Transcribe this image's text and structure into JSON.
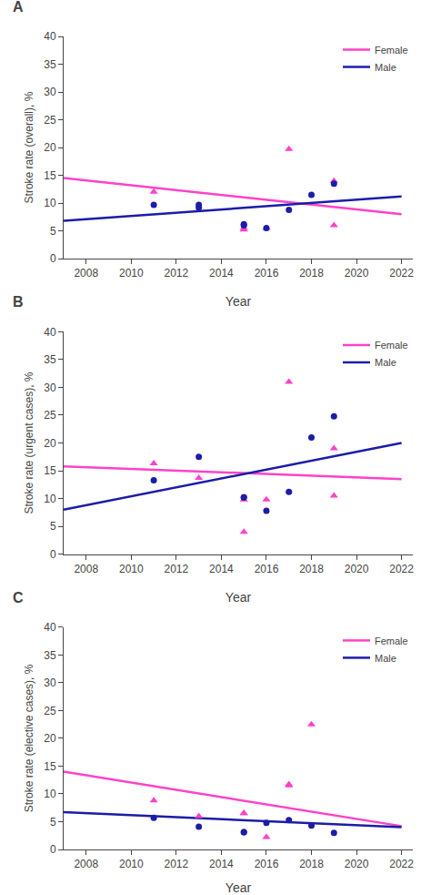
{
  "chart_data": [
    {
      "type": "scatter",
      "title": "A",
      "xlabel": "Year",
      "ylabel": "Stroke rate (overall), %",
      "xlim": [
        2007,
        2022.5
      ],
      "ylim": [
        0,
        40
      ],
      "xticks": [
        2008,
        2010,
        2012,
        2014,
        2016,
        2018,
        2020,
        2022
      ],
      "yticks": [
        0,
        5,
        10,
        15,
        20,
        25,
        30,
        35,
        40
      ],
      "grid": false,
      "legend": "upper right",
      "series": [
        {
          "name": "Female",
          "type": "line",
          "line_style": "solid",
          "color": "#FF42C8",
          "x": [
            2007,
            2022
          ],
          "values": [
            14.5,
            8.0
          ]
        },
        {
          "name": "Male",
          "type": "line",
          "line_style": "solid",
          "color": "#1C1CA8",
          "x": [
            2007,
            2022
          ],
          "values": [
            6.8,
            11.2
          ]
        },
        {
          "type": "scatter",
          "marker": "triangle-up",
          "color": "#FF42C8",
          "x": [
            2011,
            2015,
            2015,
            2016,
            2017,
            2019,
            2019
          ],
          "values": [
            12.0,
            5.2,
            5.5,
            5.5,
            19.7,
            14.0,
            6.0
          ]
        },
        {
          "type": "scatter",
          "marker": "circle",
          "color": "#1C1CA8",
          "x": [
            2011,
            2013,
            2013,
            2015,
            2015,
            2016,
            2017,
            2018,
            2019
          ],
          "values": [
            9.7,
            9.7,
            9.2,
            6.2,
            6.0,
            5.5,
            8.8,
            11.5,
            13.5
          ]
        }
      ]
    },
    {
      "type": "scatter",
      "title": "B",
      "xlabel": "Year",
      "ylabel": "Stroke rate (urgent cases), %",
      "xlim": [
        2007,
        2022.5
      ],
      "ylim": [
        0,
        40
      ],
      "xticks": [
        2008,
        2010,
        2012,
        2014,
        2016,
        2018,
        2020,
        2022
      ],
      "yticks": [
        0,
        5,
        10,
        15,
        20,
        25,
        30,
        35,
        40
      ],
      "grid": false,
      "legend": "upper right",
      "series": [
        {
          "name": "Female",
          "type": "line",
          "line_style": "solid",
          "color": "#FF42C8",
          "x": [
            2007,
            2022
          ],
          "values": [
            15.8,
            13.5
          ]
        },
        {
          "name": "Male",
          "type": "line",
          "line_style": "solid",
          "color": "#1C1CA8",
          "x": [
            2007,
            2022
          ],
          "values": [
            8.0,
            20.0
          ]
        },
        {
          "type": "scatter",
          "marker": "triangle-up",
          "color": "#FF42C8",
          "x": [
            2011,
            2013,
            2015,
            2015,
            2016,
            2017,
            2019,
            2019
          ],
          "values": [
            16.3,
            13.7,
            4.0,
            9.8,
            9.8,
            31.0,
            10.5,
            19.0
          ]
        },
        {
          "type": "scatter",
          "marker": "circle",
          "color": "#1C1CA8",
          "x": [
            2011,
            2013,
            2015,
            2015,
            2016,
            2017,
            2018,
            2019
          ],
          "values": [
            13.3,
            17.5,
            10.2,
            10.2,
            7.8,
            11.2,
            21.0,
            24.8
          ]
        }
      ]
    },
    {
      "type": "scatter",
      "title": "C",
      "xlabel": "Year",
      "ylabel": "Stroke rate (elective cases), %",
      "xlim": [
        2007,
        2022.5
      ],
      "ylim": [
        0,
        40
      ],
      "xticks": [
        2008,
        2010,
        2012,
        2014,
        2016,
        2018,
        2020,
        2022
      ],
      "yticks": [
        0,
        5,
        10,
        15,
        20,
        25,
        30,
        35,
        40
      ],
      "grid": false,
      "legend": "upper right",
      "series": [
        {
          "name": "Female",
          "type": "line",
          "line_style": "solid",
          "color": "#FF42C8",
          "x": [
            2007,
            2022
          ],
          "values": [
            14.0,
            4.2
          ]
        },
        {
          "name": "Male",
          "type": "line",
          "line_style": "solid",
          "color": "#1C1CA8",
          "x": [
            2007,
            2022
          ],
          "values": [
            6.7,
            4.0
          ]
        },
        {
          "type": "scatter",
          "marker": "triangle-up",
          "color": "#FF42C8",
          "x": [
            2011,
            2013,
            2015,
            2015,
            2016,
            2017,
            2017,
            2018
          ],
          "values": [
            8.8,
            6.0,
            6.5,
            6.5,
            2.2,
            11.7,
            11.5,
            22.5
          ]
        },
        {
          "type": "scatter",
          "marker": "circle",
          "color": "#1C1CA8",
          "x": [
            2011,
            2013,
            2015,
            2015,
            2016,
            2017,
            2018,
            2019
          ],
          "values": [
            5.7,
            4.1,
            3.1,
            3.1,
            4.8,
            5.3,
            4.3,
            3.0
          ]
        }
      ]
    }
  ]
}
